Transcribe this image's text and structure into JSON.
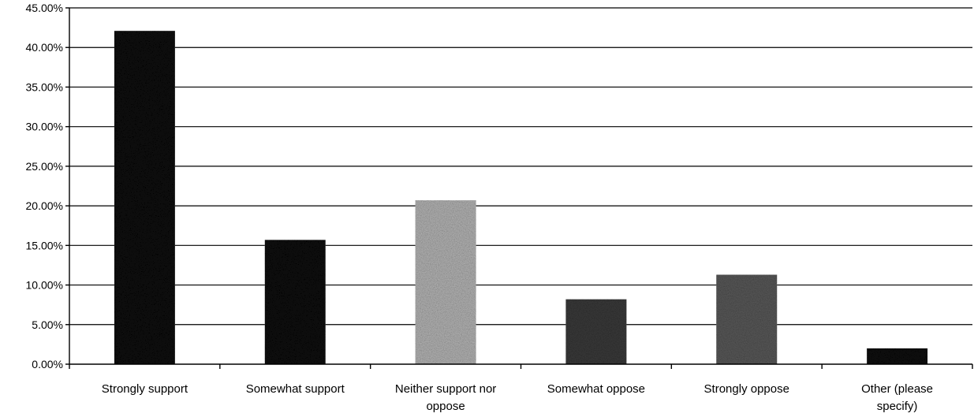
{
  "chart_data": {
    "type": "bar",
    "title": "",
    "xlabel": "",
    "ylabel": "",
    "categories": [
      [
        "Strongly support"
      ],
      [
        "Somewhat support"
      ],
      [
        "Neither support nor",
        "oppose"
      ],
      [
        "Somewhat oppose"
      ],
      [
        "Strongly oppose"
      ],
      [
        "Other (please",
        "specify)"
      ]
    ],
    "values": [
      42.1,
      15.7,
      20.7,
      8.2,
      11.3,
      2.0
    ],
    "ylim": [
      0,
      45
    ],
    "ytick_step": 5,
    "ytick_format": "percent_2dp",
    "grid": true,
    "legend": "none",
    "colors": [
      "#0a0a0a",
      "#0a0a0a",
      "#b4b4b4",
      "#3a3a3a",
      "#595959",
      "#0a0a0a"
    ]
  }
}
